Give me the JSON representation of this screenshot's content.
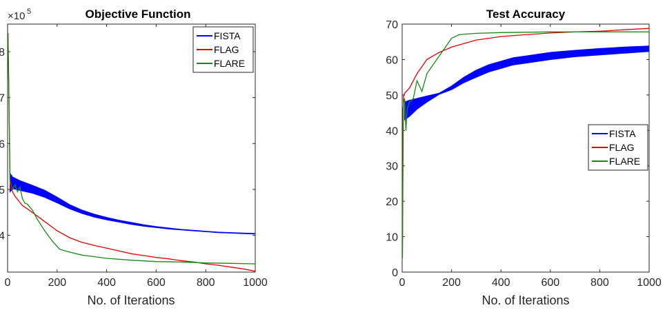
{
  "colors": {
    "FISTA": "#0000ff",
    "FLAG": "#e60000",
    "FLARE": "#138a13"
  },
  "chart_data": [
    {
      "type": "line",
      "title": "Objective Function",
      "xlabel": "No. of Iterations",
      "ylabel": "",
      "y_scale_label": "×10",
      "y_scale_exp": "5",
      "xlim": [
        0,
        1000
      ],
      "ylim": [
        3.2,
        8.6
      ],
      "x_ticks": [
        0,
        200,
        400,
        600,
        800,
        1000
      ],
      "y_ticks": [
        4,
        5,
        6,
        7,
        8
      ],
      "y_tick_labels": [
        "4",
        "5",
        "6",
        "7",
        "8"
      ],
      "legend": {
        "position": "top-right",
        "entries": [
          "FISTA",
          "FLAG",
          "FLARE"
        ]
      },
      "series": [
        {
          "name": "FISTA",
          "band": true,
          "x": [
            10,
            20,
            50,
            100,
            150,
            200,
            250,
            300,
            350,
            400,
            450,
            500,
            550,
            600,
            650,
            700,
            750,
            800,
            850,
            900,
            950,
            1000
          ],
          "upper": [
            5.35,
            5.27,
            5.19,
            5.09,
            4.98,
            4.83,
            4.67,
            4.55,
            4.46,
            4.39,
            4.33,
            4.28,
            4.23,
            4.19,
            4.16,
            4.13,
            4.11,
            4.09,
            4.07,
            4.06,
            4.05,
            4.04
          ],
          "lower": [
            4.95,
            5.02,
            4.98,
            4.92,
            4.83,
            4.71,
            4.58,
            4.48,
            4.4,
            4.34,
            4.29,
            4.24,
            4.2,
            4.17,
            4.14,
            4.12,
            4.1,
            4.08,
            4.06,
            4.05,
            4.04,
            4.03
          ]
        },
        {
          "name": "FLAG",
          "x": [
            2,
            10,
            30,
            60,
            100,
            150,
            200,
            250,
            300,
            350,
            400,
            450,
            500,
            550,
            600,
            650,
            700,
            750,
            800,
            850,
            900,
            950,
            1000
          ],
          "y": [
            8.4,
            5.05,
            4.85,
            4.65,
            4.5,
            4.3,
            4.1,
            3.95,
            3.85,
            3.78,
            3.72,
            3.66,
            3.6,
            3.56,
            3.52,
            3.49,
            3.45,
            3.42,
            3.38,
            3.35,
            3.31,
            3.27,
            3.22
          ]
        },
        {
          "name": "FLARE",
          "x": [
            1,
            5,
            10,
            20,
            30,
            40,
            50,
            60,
            70,
            80,
            100,
            120,
            150,
            180,
            210,
            240,
            300,
            400,
            500,
            600,
            700,
            800,
            900,
            1000
          ],
          "y": [
            8.4,
            7.2,
            5.2,
            5.0,
            5.1,
            4.95,
            5.05,
            4.8,
            4.7,
            4.68,
            4.55,
            4.35,
            4.1,
            3.88,
            3.7,
            3.65,
            3.57,
            3.5,
            3.46,
            3.43,
            3.42,
            3.4,
            3.39,
            3.38
          ]
        }
      ]
    },
    {
      "type": "line",
      "title": "Test Accuracy",
      "xlabel": "No. of Iterations",
      "ylabel": "",
      "xlim": [
        0,
        1000
      ],
      "ylim": [
        0,
        70
      ],
      "x_ticks": [
        0,
        200,
        400,
        600,
        800,
        1000
      ],
      "y_ticks": [
        0,
        10,
        20,
        30,
        40,
        50,
        60,
        70
      ],
      "legend": {
        "position": "center-right",
        "entries": [
          "FISTA",
          "FLAG",
          "FLARE"
        ]
      },
      "series": [
        {
          "name": "FISTA",
          "band": true,
          "x": [
            10,
            30,
            60,
            100,
            150,
            200,
            250,
            300,
            350,
            400,
            450,
            500,
            600,
            700,
            800,
            900,
            1000
          ],
          "upper": [
            48,
            48.5,
            49,
            49.7,
            50.5,
            52.5,
            55,
            57,
            58.5,
            59.5,
            60.5,
            61,
            62,
            62.6,
            63.1,
            63.5,
            63.8
          ],
          "lower": [
            43,
            44,
            46,
            48,
            50.2,
            51.5,
            53.5,
            55,
            56.5,
            57.5,
            58.5,
            59,
            60,
            60.8,
            61.3,
            61.8,
            62.3
          ]
        },
        {
          "name": "FLAG",
          "x": [
            1,
            5,
            10,
            30,
            60,
            100,
            150,
            200,
            250,
            300,
            350,
            400,
            500,
            600,
            700,
            800,
            900,
            1000
          ],
          "y": [
            4,
            49.5,
            50.5,
            52,
            56,
            60,
            62,
            63.5,
            64.5,
            65.5,
            66,
            66.5,
            67,
            67.5,
            67.8,
            68,
            68.4,
            68.8
          ]
        },
        {
          "name": "FLARE",
          "x": [
            1,
            3,
            6,
            10,
            15,
            20,
            30,
            45,
            60,
            80,
            100,
            130,
            160,
            200,
            230,
            260,
            300,
            400,
            500,
            600,
            700,
            800,
            900,
            1000
          ],
          "y": [
            4,
            46,
            48,
            49,
            40,
            46,
            48,
            49,
            54,
            51,
            56,
            59,
            62,
            66,
            67,
            67.2,
            67.4,
            67.6,
            67.7,
            67.8,
            67.8,
            67.8,
            67.8,
            67.8
          ]
        }
      ]
    }
  ]
}
